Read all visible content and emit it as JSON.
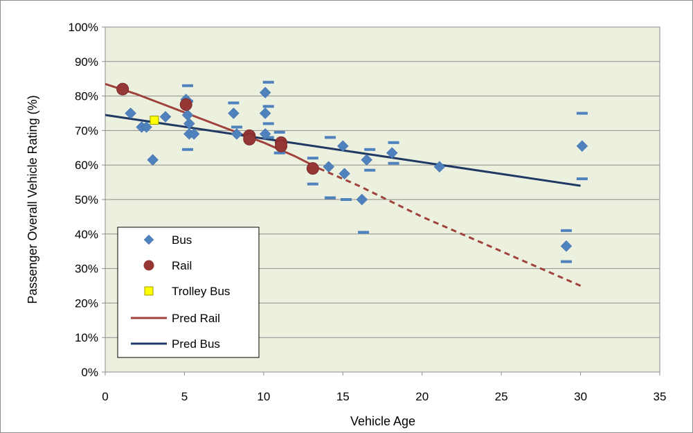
{
  "chart_data": {
    "type": "scatter",
    "xlabel": "Vehicle Age",
    "ylabel": "Passenger Overall Vehicle Rating  (%)",
    "xlim": [
      0,
      35
    ],
    "ylim": [
      0,
      100
    ],
    "x_ticks": [
      "0",
      "5",
      "10",
      "15",
      "20",
      "25",
      "30",
      "35"
    ],
    "y_ticks": [
      "0%",
      "10%",
      "20%",
      "30%",
      "40%",
      "50%",
      "60%",
      "70%",
      "80%",
      "90%",
      "100%"
    ],
    "grid": "horizontal",
    "legend_position": "bottom-left",
    "colors": {
      "plot_background": "#ebf1de",
      "bus": "#4f81bd",
      "rail": "#953735",
      "trolley": "#ffff00",
      "pred_rail": "#a0413c",
      "pred_bus": "#1f3864",
      "error_bar": "#4f81bd"
    },
    "series": [
      {
        "name": "Bus",
        "kind": "scatter",
        "marker": "diamond",
        "points": [
          {
            "x": 1.6,
            "y": 75
          },
          {
            "x": 2.3,
            "y": 71
          },
          {
            "x": 2.6,
            "y": 71
          },
          {
            "x": 3.0,
            "y": 61.5
          },
          {
            "x": 3.8,
            "y": 74
          },
          {
            "x": 5.1,
            "y": 79
          },
          {
            "x": 5.2,
            "y": 74.5
          },
          {
            "x": 5.3,
            "y": 72
          },
          {
            "x": 5.3,
            "y": 69
          },
          {
            "x": 5.6,
            "y": 69
          },
          {
            "x": 8.1,
            "y": 75
          },
          {
            "x": 8.3,
            "y": 69
          },
          {
            "x": 10.1,
            "y": 81
          },
          {
            "x": 10.1,
            "y": 75
          },
          {
            "x": 10.1,
            "y": 69
          },
          {
            "x": 15.0,
            "y": 65.5
          },
          {
            "x": 14.1,
            "y": 59.5
          },
          {
            "x": 15.1,
            "y": 57.5
          },
          {
            "x": 16.5,
            "y": 61.5
          },
          {
            "x": 16.2,
            "y": 50
          },
          {
            "x": 18.1,
            "y": 63.5
          },
          {
            "x": 21.1,
            "y": 59.5
          },
          {
            "x": 29.1,
            "y": 36.5
          },
          {
            "x": 30.1,
            "y": 65.5
          }
        ]
      },
      {
        "name": "Rail",
        "kind": "scatter",
        "marker": "circle",
        "points": [
          {
            "x": 1.1,
            "y": 82
          },
          {
            "x": 5.1,
            "y": 77.5
          },
          {
            "x": 9.1,
            "y": 68.5
          },
          {
            "x": 9.1,
            "y": 67.5
          },
          {
            "x": 11.1,
            "y": 66.5
          },
          {
            "x": 11.1,
            "y": 65.5
          },
          {
            "x": 13.1,
            "y": 59
          }
        ]
      },
      {
        "name": "Trolley Bus",
        "kind": "scatter",
        "marker": "square",
        "points": [
          {
            "x": 3.1,
            "y": 73
          }
        ]
      },
      {
        "name": "Pred Rail",
        "kind": "line",
        "solid": [
          {
            "x": 0,
            "y": 83.5
          },
          {
            "x": 2,
            "y": 80.5
          },
          {
            "x": 4,
            "y": 77
          },
          {
            "x": 6,
            "y": 73.5
          },
          {
            "x": 8,
            "y": 70
          },
          {
            "x": 10,
            "y": 66.5
          },
          {
            "x": 12,
            "y": 62.5
          },
          {
            "x": 13.5,
            "y": 59
          }
        ],
        "dashed": [
          {
            "x": 13.5,
            "y": 59
          },
          {
            "x": 16,
            "y": 54
          },
          {
            "x": 18,
            "y": 49.5
          },
          {
            "x": 20,
            "y": 45
          },
          {
            "x": 22,
            "y": 41
          },
          {
            "x": 24,
            "y": 37
          },
          {
            "x": 26,
            "y": 33
          },
          {
            "x": 28,
            "y": 29
          },
          {
            "x": 30,
            "y": 25
          }
        ]
      },
      {
        "name": "Pred Bus",
        "kind": "line",
        "points": [
          {
            "x": 0,
            "y": 74.5
          },
          {
            "x": 30,
            "y": 54
          }
        ]
      }
    ],
    "error_bar_marks": [
      {
        "x": 5.2,
        "y": 83
      },
      {
        "x": 5.2,
        "y": 78.5
      },
      {
        "x": 5.2,
        "y": 64.5
      },
      {
        "x": 8.1,
        "y": 78
      },
      {
        "x": 8.3,
        "y": 71
      },
      {
        "x": 10.3,
        "y": 84
      },
      {
        "x": 10.3,
        "y": 77
      },
      {
        "x": 10.3,
        "y": 72
      },
      {
        "x": 10.3,
        "y": 68
      },
      {
        "x": 11.0,
        "y": 69.5
      },
      {
        "x": 11.0,
        "y": 63.5
      },
      {
        "x": 13.1,
        "y": 62
      },
      {
        "x": 13.1,
        "y": 54.5
      },
      {
        "x": 14.2,
        "y": 68
      },
      {
        "x": 14.2,
        "y": 50.5
      },
      {
        "x": 15.2,
        "y": 50
      },
      {
        "x": 16.7,
        "y": 64.5
      },
      {
        "x": 16.7,
        "y": 58.5
      },
      {
        "x": 16.3,
        "y": 40.5
      },
      {
        "x": 18.2,
        "y": 66.5
      },
      {
        "x": 18.2,
        "y": 60.5
      },
      {
        "x": 29.1,
        "y": 41
      },
      {
        "x": 29.1,
        "y": 32
      },
      {
        "x": 30.1,
        "y": 75
      },
      {
        "x": 30.1,
        "y": 56
      }
    ]
  }
}
